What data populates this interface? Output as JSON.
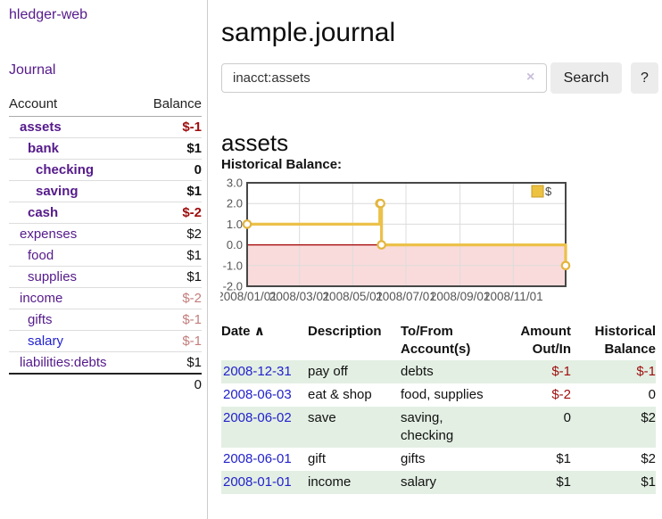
{
  "app": {
    "title": "hledger-web"
  },
  "sidebar": {
    "nav": {
      "journal_label": "Journal"
    },
    "table": {
      "account_header": "Account",
      "balance_header": "Balance",
      "accounts": [
        {
          "name": "assets",
          "depth": 0,
          "bold": true,
          "balance": "$-1",
          "balance_style": "neg"
        },
        {
          "name": "bank",
          "depth": 1,
          "bold": true,
          "balance": "$1",
          "balance_style": "pos"
        },
        {
          "name": "checking",
          "depth": 2,
          "bold": true,
          "balance": "0",
          "balance_style": "pos"
        },
        {
          "name": "saving",
          "depth": 2,
          "bold": true,
          "balance": "$1",
          "balance_style": "pos"
        },
        {
          "name": "cash",
          "depth": 1,
          "bold": true,
          "balance": "$-2",
          "balance_style": "neg"
        },
        {
          "name": "expenses",
          "depth": 0,
          "bold": false,
          "balance": "$2",
          "balance_style": "pos"
        },
        {
          "name": "food",
          "depth": 1,
          "bold": false,
          "balance": "$1",
          "balance_style": "pos"
        },
        {
          "name": "supplies",
          "depth": 1,
          "bold": false,
          "balance": "$1",
          "balance_style": "pos"
        },
        {
          "name": "income",
          "depth": 0,
          "bold": false,
          "balance": "$-2",
          "balance_style": "neg-muted"
        },
        {
          "name": "gifts",
          "depth": 1,
          "bold": false,
          "balance": "$-1",
          "balance_style": "neg-muted"
        },
        {
          "name": "salary",
          "depth": 1,
          "bold": false,
          "link_color": "blue",
          "balance": "$-1",
          "balance_style": "neg-muted"
        },
        {
          "name": "liabilities:debts",
          "depth": 0,
          "bold": false,
          "balance": "$1",
          "balance_style": "pos"
        }
      ],
      "total": "0"
    }
  },
  "header": {
    "title": "sample.journal"
  },
  "search": {
    "value": "inacct:assets",
    "clear_icon": "×",
    "button_label": "Search",
    "help_label": "?"
  },
  "account_page": {
    "heading": "assets",
    "chart_label": "Historical Balance:"
  },
  "chart_data": {
    "type": "line",
    "title": "Historical Balance",
    "step": true,
    "series": [
      {
        "name": "$",
        "color": "#edc240",
        "points": [
          [
            "2008-01-01",
            1.0
          ],
          [
            "2008-06-01",
            2.0
          ],
          [
            "2008-06-02",
            2.0
          ],
          [
            "2008-06-03",
            0.0
          ],
          [
            "2008-12-31",
            -1.0
          ]
        ]
      }
    ],
    "xlim": [
      "2008-01-01",
      "2008-12-31"
    ],
    "ylim": [
      -2.0,
      3.0
    ],
    "x_ticks": [
      {
        "date": "2008-01-01",
        "label": "2008/01/01"
      },
      {
        "date": "2008-03-01",
        "label": "2008/03/01"
      },
      {
        "date": "2008-05-01",
        "label": "2008/05/01"
      },
      {
        "date": "2008-07-01",
        "label": "2008/07/01"
      },
      {
        "date": "2008-09-01",
        "label": "2008/09/01"
      },
      {
        "date": "2008-11-01",
        "label": "2008/11/01"
      }
    ],
    "y_ticks": [
      "3.0",
      "2.0",
      "1.0",
      "0.0",
      "-1.0",
      "-2.0"
    ],
    "grid": true,
    "legend": {
      "label": "$",
      "position": "top-right"
    },
    "colors": {
      "line": "#ecc14a",
      "marker_stroke": "#e3b53e",
      "negative_region": "#fadbdb",
      "zero_line": "#a40000",
      "gridline": "#dcdcdc",
      "plot_border": "#474747",
      "axis_text": "#555555"
    }
  },
  "register": {
    "headers": [
      "Date",
      "Description",
      "To/From Account(s)",
      "Amount Out/In",
      "Historical Balance"
    ],
    "sort_arrow": "∧",
    "rows": [
      {
        "date": "2008-12-31",
        "description": "pay off",
        "accounts": "debts",
        "amount": "$-1",
        "amount_neg": true,
        "balance": "$-1",
        "balance_neg": true
      },
      {
        "date": "2008-06-03",
        "description": "eat & shop",
        "accounts": "food, supplies",
        "amount": "$-2",
        "amount_neg": true,
        "balance": "0",
        "balance_neg": false
      },
      {
        "date": "2008-06-02",
        "description": "save",
        "accounts": "saving, checking",
        "amount": "0",
        "amount_neg": false,
        "balance": "$2",
        "balance_neg": false
      },
      {
        "date": "2008-06-01",
        "description": "gift",
        "accounts": "gifts",
        "amount": "$1",
        "amount_neg": false,
        "balance": "$2",
        "balance_neg": false
      },
      {
        "date": "2008-01-01",
        "description": "income",
        "accounts": "salary",
        "amount": "$1",
        "amount_neg": false,
        "balance": "$1",
        "balance_neg": false
      }
    ]
  }
}
